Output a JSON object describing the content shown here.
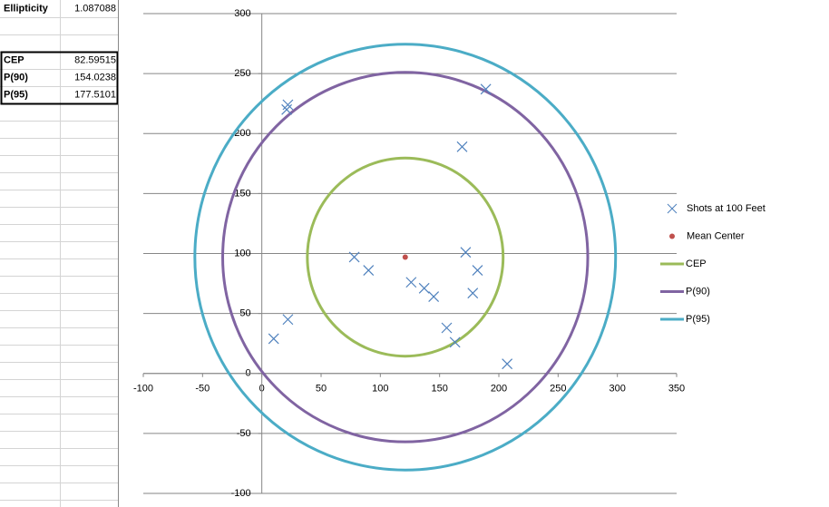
{
  "sheet": {
    "rows": [
      [
        "Ellipticity",
        1.087088
      ],
      [
        "CEP",
        82.59515
      ],
      [
        "P(90)",
        154.0238
      ],
      [
        "P(95)",
        177.5101
      ]
    ]
  },
  "chart_data": {
    "type": "scatter",
    "xlim": [
      -100,
      350
    ],
    "xticks": [
      -100,
      -50,
      0,
      50,
      100,
      150,
      200,
      250,
      300,
      350
    ],
    "ylim": [
      -100,
      300
    ],
    "yticks": [
      -100,
      -50,
      0,
      50,
      100,
      150,
      200,
      250,
      300
    ],
    "grid": true,
    "legend": "right",
    "series": [
      {
        "name": "Shots at 100 Feet",
        "color": "#4f81bd",
        "x": [
          22,
          21,
          189,
          169,
          78,
          90,
          172,
          182,
          126,
          137,
          145,
          178,
          22,
          10,
          156,
          163,
          207
        ],
        "values": [
          224,
          220,
          237,
          189,
          97,
          86,
          101,
          86,
          76,
          71,
          64,
          67,
          45,
          29,
          38,
          26,
          8
        ]
      },
      {
        "name": "Mean Center",
        "color": "#c0504d",
        "x": [
          121
        ],
        "values": [
          97
        ]
      },
      {
        "name": "CEP",
        "color": "#9bbb59"
      },
      {
        "name": "P(90)",
        "color": "#8064a2"
      },
      {
        "name": "P(95)",
        "color": "#4bacc6"
      }
    ]
  }
}
